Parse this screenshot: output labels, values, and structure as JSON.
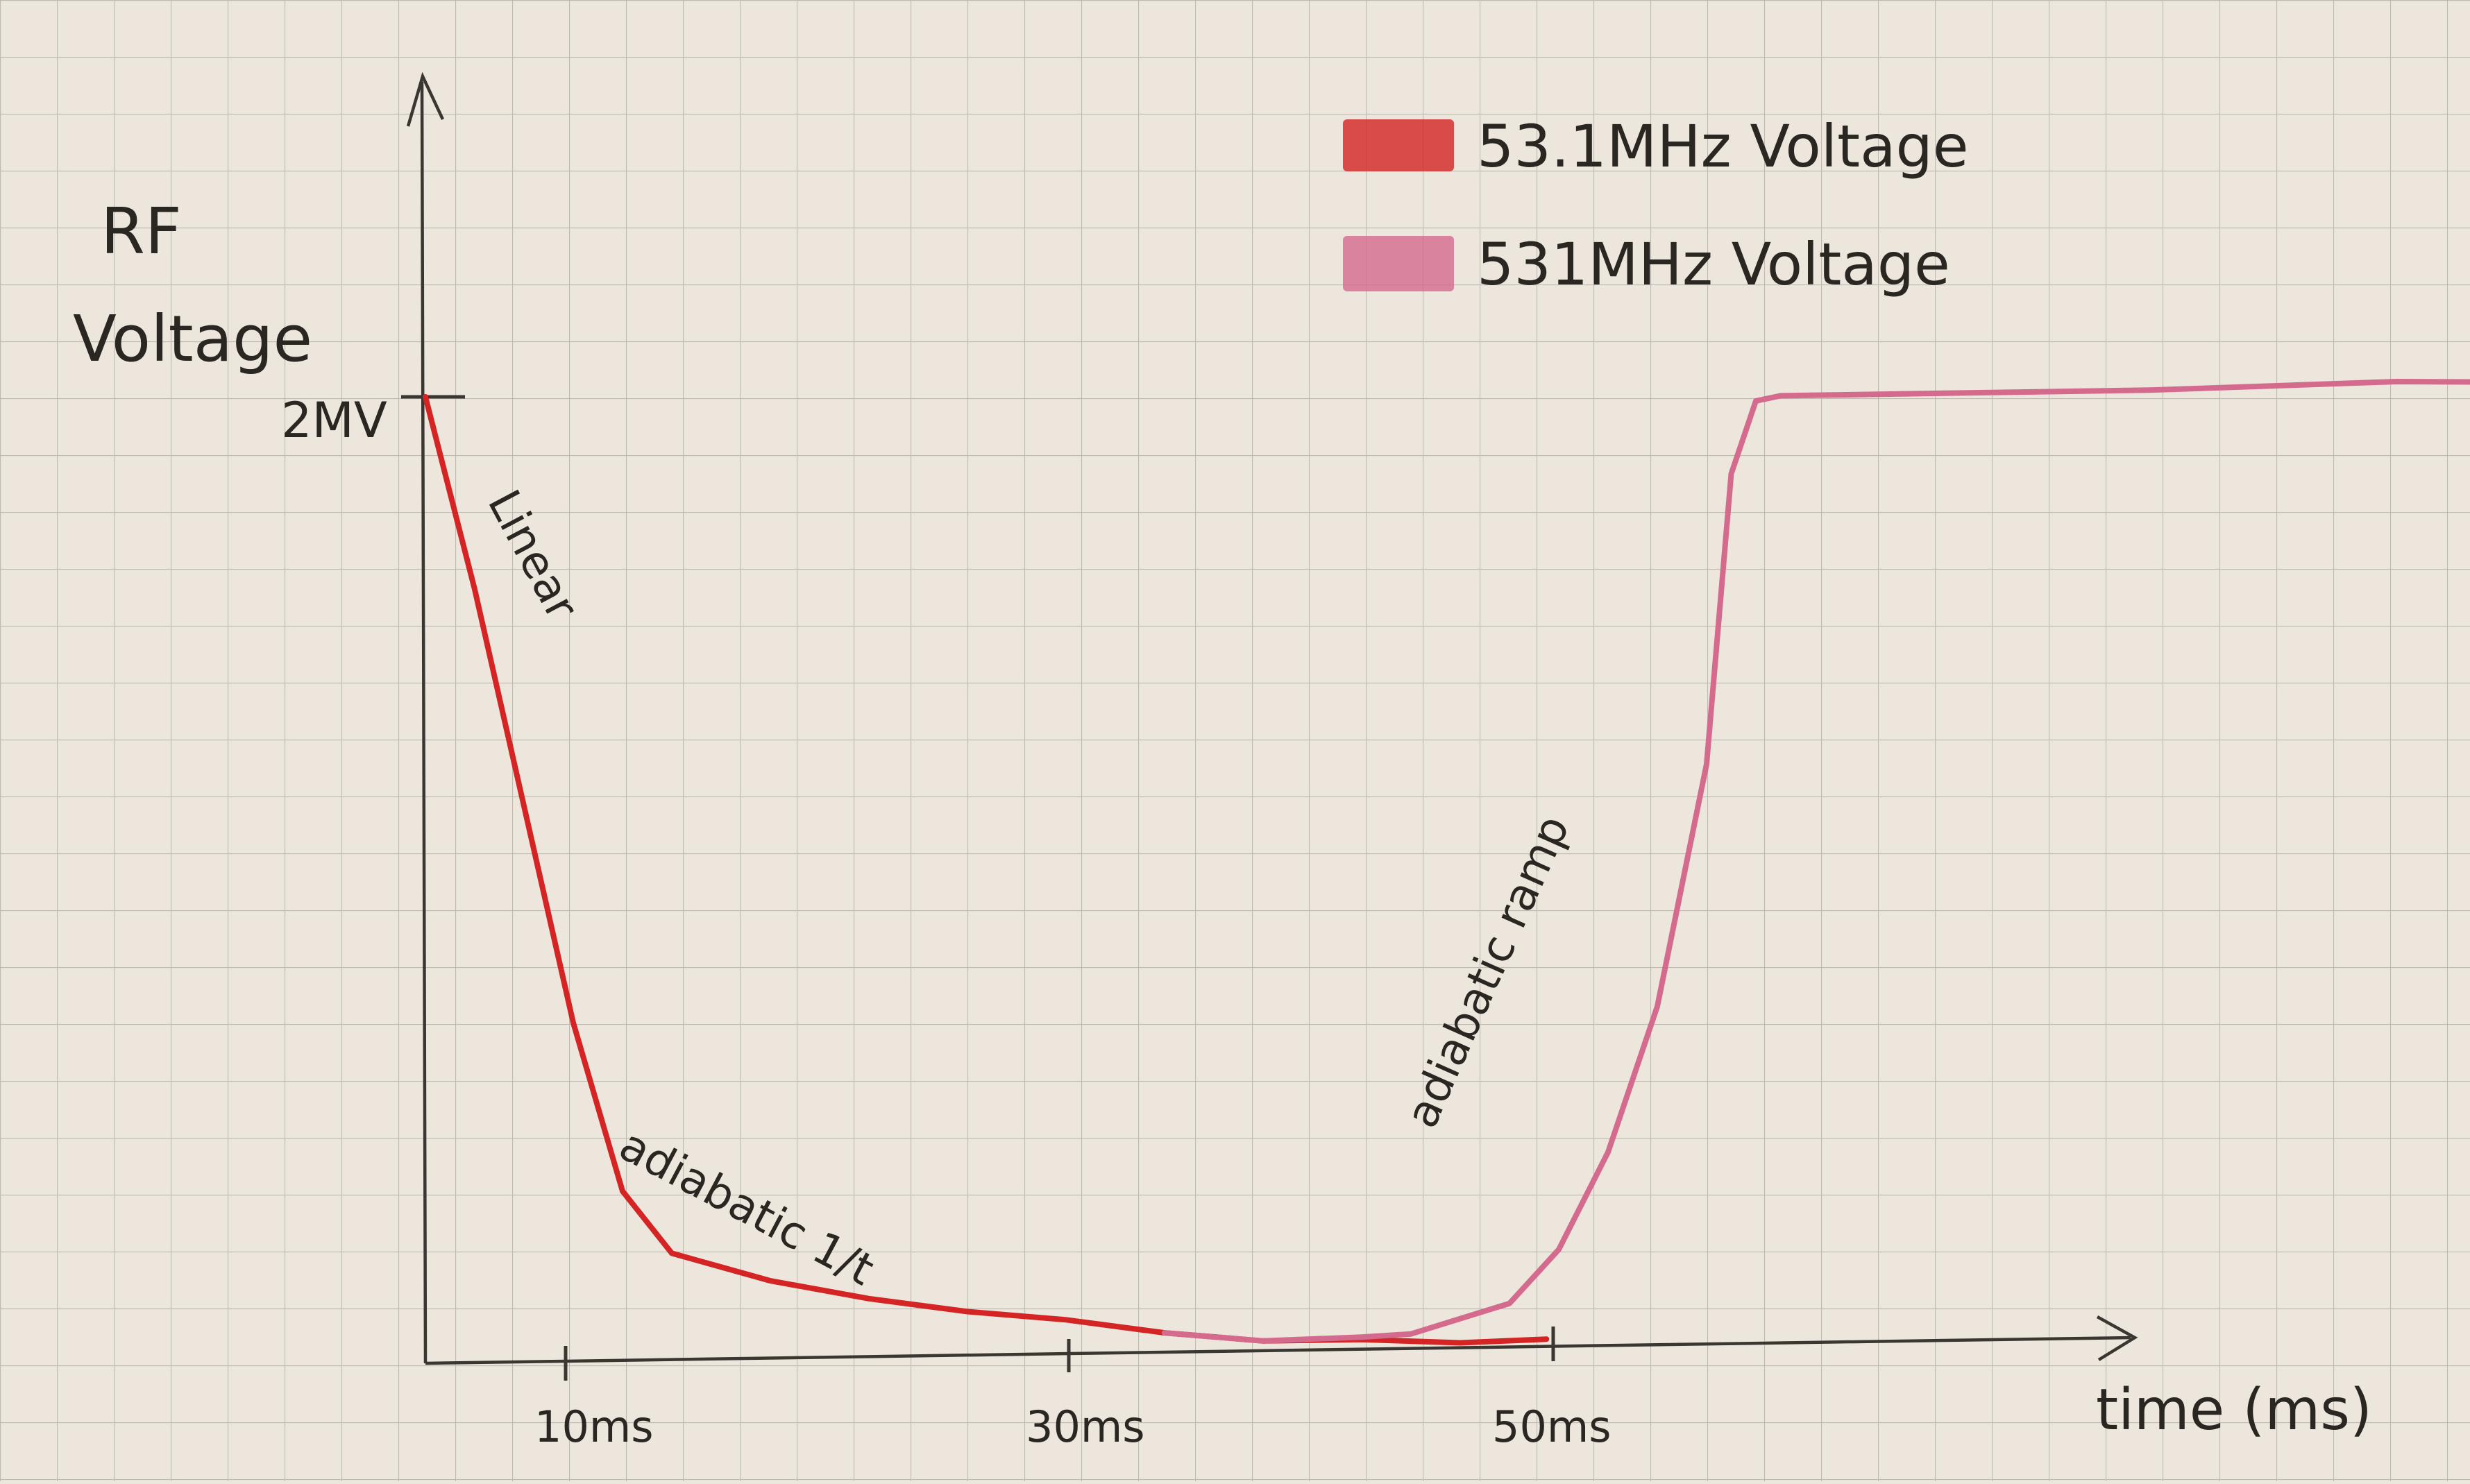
{
  "chart_data": {
    "type": "line",
    "ylabel_lines": [
      "RF",
      "Voltage"
    ],
    "xlabel": "time (ms)",
    "y_tick": {
      "value": 2,
      "label": "2MV"
    },
    "x_ticks": [
      {
        "value": 10,
        "label": "10ms"
      },
      {
        "value": 30,
        "label": "30ms"
      },
      {
        "value": 50,
        "label": "50ms"
      }
    ],
    "xlim": [
      0,
      140
    ],
    "ylim": [
      0,
      2.5
    ],
    "grid": true,
    "legend_position": "top-right",
    "series": [
      {
        "name": "53.1MHz Voltage",
        "color": "#d42424",
        "points": [
          [
            0,
            2.0
          ],
          [
            2,
            1.6
          ],
          [
            4,
            1.15
          ],
          [
            6,
            0.7
          ],
          [
            8,
            0.35
          ],
          [
            10,
            0.22
          ],
          [
            14,
            0.16
          ],
          [
            18,
            0.12
          ],
          [
            22,
            0.09
          ],
          [
            26,
            0.07
          ],
          [
            30,
            0.04
          ],
          [
            34,
            0.02
          ],
          [
            38,
            0.02
          ],
          [
            42,
            0.01
          ],
          [
            45.5,
            0.015
          ]
        ]
      },
      {
        "name": "531MHz Voltage",
        "color": "#d46a8e",
        "points": [
          [
            30,
            0.04
          ],
          [
            34,
            0.02
          ],
          [
            38,
            0.025
          ],
          [
            40,
            0.03
          ],
          [
            44,
            0.09
          ],
          [
            46,
            0.2
          ],
          [
            48,
            0.4
          ],
          [
            50,
            0.7
          ],
          [
            52,
            1.2
          ],
          [
            53,
            1.8
          ],
          [
            54,
            1.95
          ],
          [
            55,
            1.96
          ],
          [
            65,
            1.96
          ],
          [
            70,
            1.96
          ],
          [
            80,
            1.97
          ],
          [
            90,
            1.96
          ],
          [
            105,
            1.98
          ],
          [
            116,
            1.97
          ],
          [
            124,
            1.95
          ],
          [
            133,
            1.96
          ],
          [
            139,
            1.97
          ]
        ]
      }
    ],
    "annotations": [
      {
        "text": "Linear",
        "x": 5,
        "y": 1.5
      },
      {
        "text": "adiabatic 1/t",
        "x": 20,
        "y": 0.3
      },
      {
        "text": "adiabatic ramp",
        "x": 49,
        "y": 0.95
      }
    ]
  }
}
